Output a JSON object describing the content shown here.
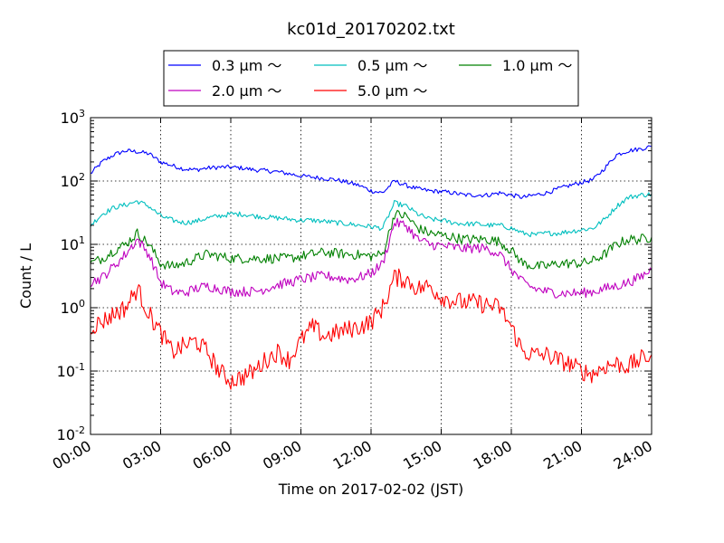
{
  "chart_data": {
    "type": "line",
    "title": "kc01d_20170202.txt",
    "xlabel": "Time on 2017-02-02 (JST)",
    "ylabel": "Count / L",
    "yscale": "log",
    "ylim": [
      0.01,
      1000
    ],
    "xlim": [
      "00:00",
      "24:00"
    ],
    "x_unit": "hours since 00:00 JST",
    "x_ticks": [
      "00:00",
      "03:00",
      "06:00",
      "09:00",
      "12:00",
      "15:00",
      "18:00",
      "21:00",
      "24:00"
    ],
    "y_ticks": [
      {
        "value": 0.01,
        "base": "10",
        "exp": "-2"
      },
      {
        "value": 0.1,
        "base": "10",
        "exp": "-1"
      },
      {
        "value": 1,
        "base": "10",
        "exp": "0"
      },
      {
        "value": 10,
        "base": "10",
        "exp": "1"
      },
      {
        "value": 100,
        "base": "10",
        "exp": "2"
      },
      {
        "value": 1000,
        "base": "10",
        "exp": "3"
      }
    ],
    "grid": true,
    "legend_position": "top-center",
    "x": [
      0,
      0.5,
      1,
      1.5,
      2,
      2.5,
      3,
      3.5,
      4,
      4.5,
      5,
      5.5,
      6,
      6.5,
      7,
      7.5,
      8,
      8.5,
      9,
      9.5,
      10,
      10.5,
      11,
      11.5,
      12,
      12.5,
      13,
      13.5,
      14,
      14.5,
      15,
      15.5,
      16,
      16.5,
      17,
      17.5,
      18,
      18.5,
      19,
      19.5,
      20,
      20.5,
      21,
      21.5,
      22,
      22.5,
      23,
      23.5,
      24
    ],
    "series": [
      {
        "name": "0.3 μm ～",
        "color": "#0000ff",
        "values": [
          130,
          200,
          260,
          300,
          290,
          270,
          200,
          175,
          155,
          150,
          160,
          165,
          165,
          160,
          150,
          145,
          140,
          130,
          120,
          115,
          110,
          105,
          95,
          85,
          70,
          65,
          100,
          85,
          75,
          70,
          68,
          65,
          60,
          60,
          60,
          65,
          60,
          55,
          60,
          65,
          75,
          85,
          95,
          105,
          160,
          260,
          300,
          320,
          350
        ]
      },
      {
        "name": "0.5 μm ～",
        "color": "#00bfbf",
        "values": [
          20,
          30,
          38,
          42,
          48,
          40,
          28,
          24,
          22,
          23,
          26,
          28,
          30,
          30,
          28,
          27,
          26,
          25,
          24,
          24,
          23,
          22,
          21,
          20,
          19,
          18,
          45,
          40,
          30,
          25,
          24,
          22,
          21,
          21,
          20,
          20,
          18,
          15,
          14,
          15,
          15,
          16,
          17,
          18,
          25,
          40,
          55,
          60,
          62
        ]
      },
      {
        "name": "1.0 μm ～",
        "color": "#008000",
        "values": [
          5,
          6,
          8,
          10,
          15,
          10,
          5,
          4.5,
          5,
          6,
          7,
          6.5,
          6,
          6,
          6,
          6,
          6,
          6,
          6.5,
          7,
          7.5,
          7.2,
          7,
          6.8,
          6.5,
          7,
          30,
          28,
          18,
          15,
          14,
          13,
          12,
          12,
          12,
          11,
          8,
          5,
          4.5,
          4.5,
          5,
          5,
          5,
          5.5,
          7,
          10,
          12,
          12,
          13
        ]
      },
      {
        "name": "2.0 μm ～",
        "color": "#bf00bf",
        "values": [
          2.5,
          3,
          4.5,
          7,
          12,
          7,
          2.5,
          1.8,
          1.7,
          2,
          2.2,
          2,
          1.8,
          1.8,
          1.8,
          2,
          2.3,
          2.5,
          2.8,
          3,
          3.2,
          3,
          2.8,
          3,
          3.5,
          5,
          22,
          20,
          12,
          10,
          9.5,
          9,
          8.5,
          8.8,
          8.5,
          7,
          4,
          2.5,
          2,
          1.8,
          1.7,
          1.7,
          1.7,
          1.8,
          2,
          2.2,
          2.5,
          3,
          4
        ]
      },
      {
        "name": "5.0 μm ～",
        "color": "#ff0000",
        "values": [
          0.5,
          0.6,
          0.8,
          1,
          2,
          0.8,
          0.4,
          0.2,
          0.25,
          0.3,
          0.2,
          0.1,
          0.07,
          0.08,
          0.1,
          0.15,
          0.2,
          0.15,
          0.3,
          0.5,
          0.35,
          0.4,
          0.45,
          0.5,
          0.6,
          1,
          3,
          2.8,
          2,
          2.2,
          1.5,
          1.3,
          1.2,
          1.2,
          1.1,
          1,
          0.5,
          0.2,
          0.18,
          0.18,
          0.15,
          0.13,
          0.1,
          0.09,
          0.12,
          0.13,
          0.12,
          0.15,
          0.18
        ]
      }
    ]
  }
}
